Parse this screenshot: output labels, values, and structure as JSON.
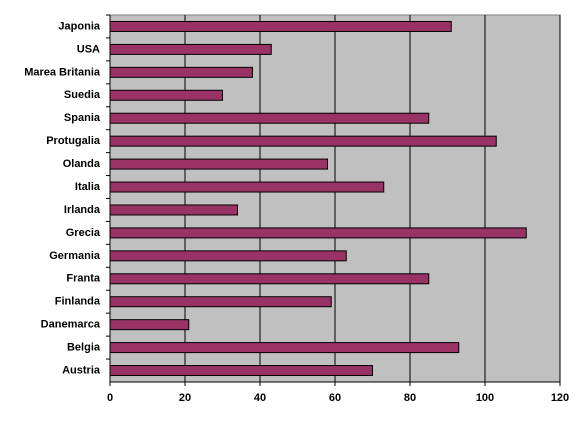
{
  "chart_data": {
    "type": "bar",
    "orientation": "horizontal",
    "categories": [
      "Japonia",
      "USA",
      "Marea Britania",
      "Suedia",
      "Spania",
      "Protugalia",
      "Olanda",
      "Italia",
      "Irlanda",
      "Grecia",
      "Germania",
      "Franta",
      "Finlanda",
      "Danemarca",
      "Belgia",
      "Austria"
    ],
    "values": [
      91,
      43,
      38,
      30,
      85,
      103,
      58,
      73,
      34,
      111,
      63,
      85,
      59,
      21,
      93,
      70
    ],
    "color": "#993366",
    "xlim": [
      0,
      120
    ],
    "xticks": [
      0,
      20,
      40,
      60,
      80,
      100,
      120
    ],
    "grid": true
  }
}
